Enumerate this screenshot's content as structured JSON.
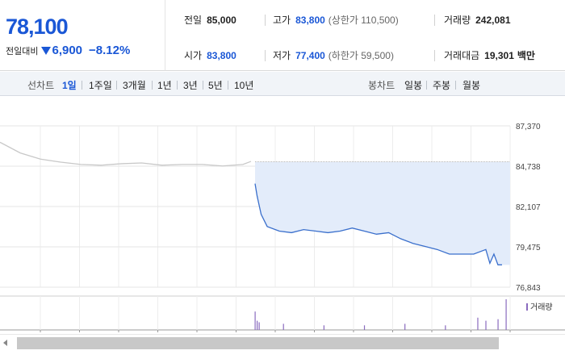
{
  "price": {
    "current": "78,100",
    "change_label": "전일대비",
    "change_value": "6,900",
    "change_rate": "−8.12%",
    "color": "#1a57d6"
  },
  "summary": {
    "prev_close": {
      "label": "전일",
      "value": "85,000"
    },
    "high": {
      "label": "고가",
      "value": "83,800",
      "sub": "(상한가 110,500)"
    },
    "volume": {
      "label": "거래량",
      "value": "242,081"
    },
    "open": {
      "label": "시가",
      "value": "83,800"
    },
    "low": {
      "label": "저가",
      "value": "77,400",
      "sub": "(하한가 59,500)"
    },
    "amount": {
      "label": "거래대금",
      "value": "19,301",
      "unit": "백만"
    }
  },
  "period_bar": {
    "line_label": "선차트",
    "line_options": [
      "1일",
      "1주일",
      "3개월",
      "1년",
      "3년",
      "5년",
      "10년"
    ],
    "selected": "1일",
    "candle_label": "봉차트",
    "candle_options": [
      "일봉",
      "주봉",
      "월봉"
    ]
  },
  "chart_data": {
    "type": "line",
    "title": "",
    "xlabel": "",
    "ylabel": "",
    "y_ticks": [
      "87,370",
      "84,738",
      "82,107",
      "79,475",
      "76,843"
    ],
    "ylim": [
      76843,
      87370
    ],
    "reference_price": 85000,
    "grid": true,
    "series": [
      {
        "role": "previous_day",
        "color": "#c8c8c8",
        "x": [
          0,
          5,
          10,
          15,
          20,
          25,
          30,
          35,
          40,
          45,
          50,
          55,
          60,
          62
        ],
        "values": [
          86300,
          85600,
          85200,
          85000,
          84850,
          84800,
          84900,
          84950,
          84800,
          84850,
          84850,
          84750,
          84850,
          85050
        ]
      },
      {
        "role": "today",
        "color": "#3a6fcc",
        "fill": "#e3ecfa",
        "x": [
          63,
          63.5,
          64,
          64.5,
          66,
          69,
          72,
          75,
          78,
          81,
          84,
          87,
          90,
          93,
          96,
          99,
          102,
          105,
          108,
          111,
          114,
          117,
          120,
          121,
          122,
          123,
          124
        ],
        "values": [
          83600,
          82800,
          82200,
          81600,
          80800,
          80500,
          80400,
          80600,
          80500,
          80400,
          80500,
          80700,
          80500,
          80300,
          80400,
          80000,
          79700,
          79500,
          79300,
          79000,
          79000,
          79000,
          79300,
          78400,
          79000,
          78300,
          78300
        ]
      }
    ],
    "volume": {
      "label": "거래량",
      "color": "#8a6bbf",
      "x": [
        63,
        63.5,
        64,
        70,
        80,
        90,
        100,
        110,
        118,
        120,
        123,
        125
      ],
      "values": [
        0.6,
        0.3,
        0.25,
        0.2,
        0.15,
        0.15,
        0.2,
        0.15,
        0.4,
        0.3,
        0.35,
        1.0
      ]
    },
    "x_range": [
      0,
      126
    ]
  }
}
